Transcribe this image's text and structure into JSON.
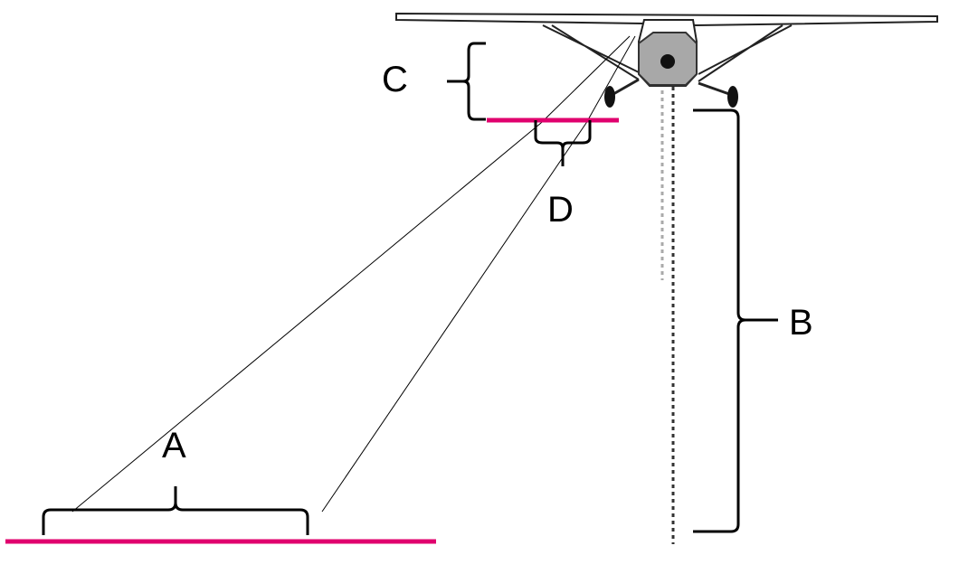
{
  "labels": {
    "a": "A",
    "b": "B",
    "c": "C",
    "d": "D"
  },
  "colors": {
    "ground_line": "#e0006e",
    "aircraft_body": "#a8a8a8",
    "aircraft_outline": "#333333",
    "guide_line_dark": "#333333",
    "guide_line_light": "#aaaaaa"
  }
}
